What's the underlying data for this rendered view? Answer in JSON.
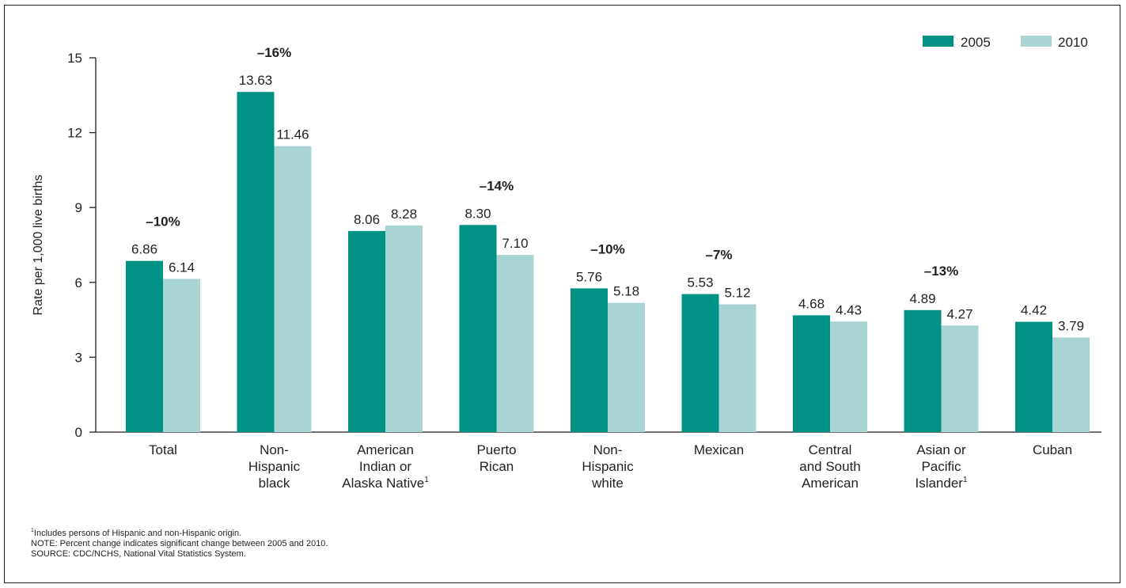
{
  "colors": {
    "series_2005": "#009185",
    "series_2010": "#a8d5d3",
    "text": "#231f20",
    "axis": "#231f20"
  },
  "chart_data": {
    "type": "bar",
    "ylabel": "Rate per 1,000 live births",
    "xlabel": "",
    "ylim": [
      0,
      15
    ],
    "yticks": [
      0,
      3,
      6,
      9,
      12,
      15
    ],
    "grid": false,
    "legend_position": "top-right",
    "categories": [
      [
        "Total"
      ],
      [
        "Non-",
        "Hispanic",
        "black"
      ],
      [
        "American",
        "Indian or",
        "Alaska Native¹"
      ],
      [
        "Puerto",
        "Rican"
      ],
      [
        "Non-",
        "Hispanic",
        "white"
      ],
      [
        "Mexican"
      ],
      [
        "Central",
        "and South",
        "American"
      ],
      [
        "Asian or",
        "Pacific",
        "Islander¹"
      ],
      [
        "Cuban"
      ]
    ],
    "series": [
      {
        "name": "2005",
        "values": [
          6.86,
          13.63,
          8.06,
          8.3,
          5.76,
          5.53,
          4.68,
          4.89,
          4.42
        ],
        "labels": [
          "6.86",
          "13.63",
          "8.06",
          "8.30",
          "5.76",
          "5.53",
          "4.68",
          "4.89",
          "4.42"
        ]
      },
      {
        "name": "2010",
        "values": [
          6.14,
          11.46,
          8.28,
          7.1,
          5.18,
          5.12,
          4.43,
          4.27,
          3.79
        ],
        "labels": [
          "6.14",
          "11.46",
          "8.28",
          "7.10",
          "5.18",
          "5.12",
          "4.43",
          "4.27",
          "3.79"
        ]
      }
    ],
    "annotations": [
      "–10%",
      "–16%",
      "",
      "–14%",
      "–10%",
      "–7%",
      "",
      "–13%",
      ""
    ]
  },
  "notes": {
    "footnote_marker": "1",
    "footnote_text": "Includes persons of Hispanic and non-Hispanic origin.",
    "note": "NOTE: Percent change indicates significant change between 2005 and 2010.",
    "source": "SOURCE: CDC/NCHS, National Vital Statistics System."
  }
}
